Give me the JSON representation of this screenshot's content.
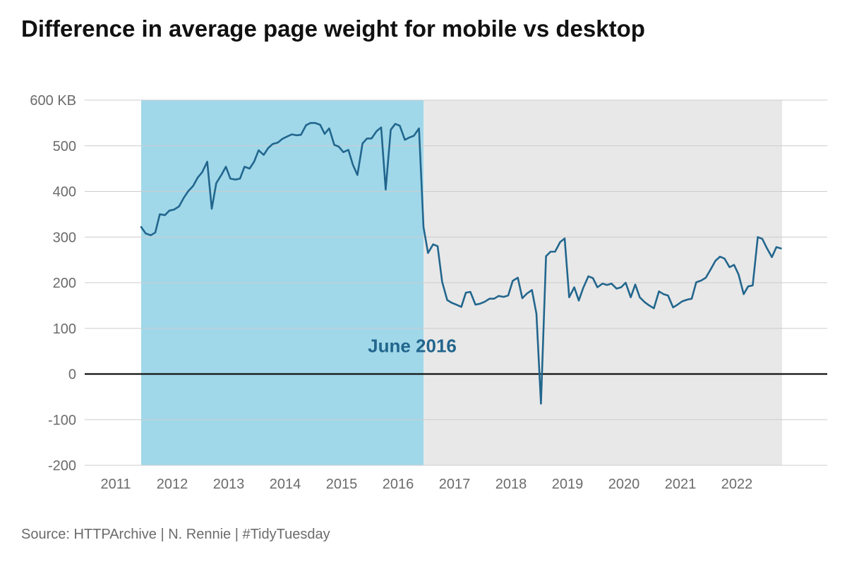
{
  "title": "Difference in average page weight for mobile vs desktop",
  "caption": "Source: HTTPArchive | N. Rennie | #TidyTuesday",
  "chart_data": {
    "type": "line",
    "title": "Difference in average page weight for mobile vs desktop",
    "xlabel": "",
    "ylabel": "",
    "xlim": [
      2010.45,
      2023.6
    ],
    "ylim": [
      -200,
      600
    ],
    "x_ticks": [
      {
        "value": 2011,
        "label": "2011"
      },
      {
        "value": 2012,
        "label": "2012"
      },
      {
        "value": 2013,
        "label": "2013"
      },
      {
        "value": 2014,
        "label": "2014"
      },
      {
        "value": 2015,
        "label": "2015"
      },
      {
        "value": 2016,
        "label": "2016"
      },
      {
        "value": 2017,
        "label": "2017"
      },
      {
        "value": 2018,
        "label": "2018"
      },
      {
        "value": 2019,
        "label": "2019"
      },
      {
        "value": 2020,
        "label": "2020"
      },
      {
        "value": 2021,
        "label": "2021"
      },
      {
        "value": 2022,
        "label": "2022"
      }
    ],
    "y_ticks": [
      {
        "value": 600,
        "label": "600 KB"
      },
      {
        "value": 500,
        "label": "500"
      },
      {
        "value": 400,
        "label": "400"
      },
      {
        "value": 300,
        "label": "300"
      },
      {
        "value": 200,
        "label": "200"
      },
      {
        "value": 100,
        "label": "100"
      },
      {
        "value": 0,
        "label": "0"
      },
      {
        "value": -100,
        "label": "-100"
      },
      {
        "value": -200,
        "label": "-200"
      }
    ],
    "grid": true,
    "zero_line": true,
    "colors": {
      "line": "#22668d",
      "band_before": "#a0d8ea",
      "band_after": "#e8e8e8",
      "grid": "#cccccc",
      "zero_line": "#111111",
      "annotation": "#22668d"
    },
    "shaded_regions": [
      {
        "x_start": 2011.45,
        "x_end": 2016.45,
        "color": "#a0d8ea"
      },
      {
        "x_start": 2016.45,
        "x_end": 2022.8,
        "color": "#e8e8e8"
      }
    ],
    "annotation": {
      "text": "June 2016",
      "x": 2016.25,
      "y": 48
    },
    "series": [
      {
        "x": [
          2011.45,
          2011.53,
          2011.62,
          2011.7,
          2011.78,
          2011.87,
          2011.95,
          2012.03,
          2012.12,
          2012.2,
          2012.28,
          2012.37,
          2012.45,
          2012.53,
          2012.62,
          2012.7,
          2012.78,
          2012.87,
          2012.95,
          2013.03,
          2013.12,
          2013.2,
          2013.28,
          2013.37,
          2013.45,
          2013.53,
          2013.62,
          2013.7,
          2013.78,
          2013.87,
          2013.95,
          2014.03,
          2014.12,
          2014.2,
          2014.28,
          2014.37,
          2014.45,
          2014.53,
          2014.62,
          2014.7,
          2014.78,
          2014.87,
          2014.95,
          2015.03,
          2015.12,
          2015.2,
          2015.28,
          2015.37,
          2015.45,
          2015.53,
          2015.62,
          2015.7,
          2015.78,
          2015.87,
          2015.95,
          2016.03,
          2016.12,
          2016.2,
          2016.28,
          2016.37,
          2016.45,
          2016.53,
          2016.62,
          2016.7,
          2016.78,
          2016.87,
          2016.95,
          2017.03,
          2017.12,
          2017.2,
          2017.28,
          2017.37,
          2017.45,
          2017.53,
          2017.62,
          2017.7,
          2017.78,
          2017.87,
          2017.95,
          2018.03,
          2018.12,
          2018.2,
          2018.28,
          2018.37,
          2018.45,
          2018.53,
          2018.62,
          2018.7,
          2018.78,
          2018.87,
          2018.95,
          2019.03,
          2019.12,
          2019.2,
          2019.28,
          2019.37,
          2019.45,
          2019.53,
          2019.62,
          2019.7,
          2019.78,
          2019.87,
          2019.95,
          2020.03,
          2020.12,
          2020.2,
          2020.28,
          2020.37,
          2020.45,
          2020.53,
          2020.62,
          2020.7,
          2020.78,
          2020.87,
          2020.95,
          2021.03,
          2021.12,
          2021.2,
          2021.28,
          2021.37,
          2021.45,
          2021.53,
          2021.62,
          2021.7,
          2021.78,
          2021.87,
          2021.95,
          2022.03,
          2022.12,
          2022.2,
          2022.28,
          2022.37,
          2022.45,
          2022.53,
          2022.62,
          2022.7,
          2022.78
        ],
        "values": [
          322,
          308,
          304,
          310,
          350,
          348,
          358,
          360,
          367,
          385,
          400,
          412,
          430,
          442,
          465,
          362,
          418,
          436,
          454,
          428,
          426,
          428,
          454,
          450,
          465,
          490,
          480,
          495,
          504,
          507,
          515,
          520,
          525,
          523,
          524,
          545,
          550,
          550,
          546,
          526,
          538,
          502,
          498,
          486,
          491,
          458,
          436,
          505,
          516,
          516,
          532,
          540,
          404,
          535,
          548,
          544,
          513,
          518,
          522,
          538,
          322,
          265,
          284,
          280,
          202,
          162,
          156,
          152,
          147,
          178,
          180,
          152,
          154,
          158,
          165,
          165,
          171,
          169,
          172,
          204,
          211,
          166,
          176,
          184,
          132,
          -65,
          258,
          268,
          268,
          289,
          297,
          168,
          190,
          161,
          189,
          214,
          210,
          190,
          198,
          195,
          198,
          187,
          190,
          200,
          168,
          196,
          168,
          157,
          150,
          144,
          181,
          175,
          172,
          146,
          152,
          159,
          163,
          165,
          201,
          205,
          211,
          228,
          248,
          257,
          253,
          234,
          239,
          218,
          175,
          192,
          194,
          300,
          296,
          276,
          256,
          278,
          275
        ]
      }
    ]
  }
}
